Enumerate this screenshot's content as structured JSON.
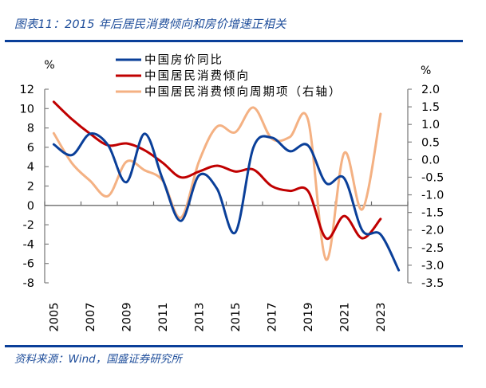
{
  "header": {
    "title": "图表11：2015 年后居民消费倾向和房价增速正相关"
  },
  "footer": {
    "source": "资料来源：Wind，国盛证券研究所"
  },
  "chart_data": {
    "type": "line",
    "title": "图表11：2015 年后居民消费倾向和房价增速正相关",
    "x": [
      2005,
      2006,
      2007,
      2008,
      2009,
      2010,
      2011,
      2012,
      2013,
      2014,
      2015,
      2016,
      2017,
      2018,
      2019,
      2020,
      2021,
      2022,
      2023,
      2024
    ],
    "x_tick_labels": [
      "2005",
      "2007",
      "2009",
      "2011",
      "2013",
      "2015",
      "2017",
      "2019",
      "2021",
      "2023"
    ],
    "y_left": {
      "label": "%",
      "ylim": [
        -8,
        12
      ],
      "ticks": [
        "12",
        "10",
        "8",
        "6",
        "4",
        "2",
        "0",
        "-2",
        "-4",
        "-6",
        "-8"
      ]
    },
    "y_right": {
      "label": "%",
      "ylim": [
        -3.5,
        2.0
      ],
      "ticks": [
        "2.0",
        "1.5",
        "1.0",
        "0.5",
        "0.0",
        "-0.5",
        "-1.0",
        "-1.5",
        "-2.0",
        "-2.5",
        "-3.0",
        "-3.5"
      ]
    },
    "grid": false,
    "legend_position": "top-center",
    "series": [
      {
        "name": "中国房价同比",
        "axis": "left",
        "color": "#0a3f99",
        "values": [
          6.3,
          5.2,
          7.4,
          6.2,
          2.4,
          7.4,
          2.7,
          -1.6,
          3.1,
          1.7,
          -2.8,
          6.0,
          7.0,
          5.6,
          6.2,
          2.3,
          2.8,
          -2.6,
          -3.0,
          -6.7
        ]
      },
      {
        "name": "中国居民消费倾向",
        "axis": "left",
        "color": "#c00000",
        "values": [
          10.7,
          8.9,
          7.4,
          6.2,
          6.4,
          5.7,
          4.4,
          2.9,
          3.5,
          4.1,
          3.5,
          3.7,
          2.0,
          1.5,
          1.5,
          -3.4,
          -1.1,
          -3.4,
          -1.4,
          null
        ]
      },
      {
        "name": "中国居民消费倾向周期项（右轴）",
        "axis": "right",
        "color": "#f4b183",
        "values": [
          0.75,
          -0.1,
          -0.6,
          -1.03,
          -0.06,
          -0.3,
          -0.6,
          -1.65,
          -0.05,
          0.94,
          0.78,
          1.48,
          0.6,
          0.64,
          1.14,
          -2.84,
          0.19,
          -1.41,
          1.3,
          null
        ]
      }
    ]
  }
}
